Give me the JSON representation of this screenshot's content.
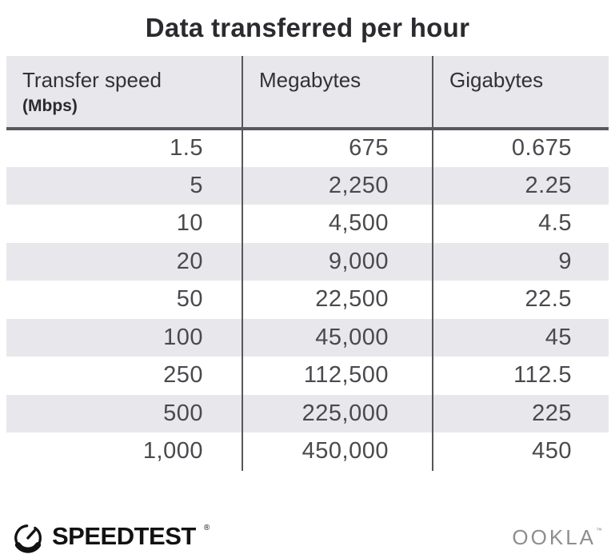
{
  "title": "Data transferred per hour",
  "table": {
    "columns": [
      {
        "label": "Transfer speed",
        "sublabel": "(Mbps)"
      },
      {
        "label": "Megabytes",
        "sublabel": ""
      },
      {
        "label": "Gigabytes",
        "sublabel": ""
      }
    ],
    "rows": [
      [
        "1.5",
        "675",
        "0.675"
      ],
      [
        "5",
        "2,250",
        "2.25"
      ],
      [
        "10",
        "4,500",
        "4.5"
      ],
      [
        "20",
        "9,000",
        "9"
      ],
      [
        "50",
        "22,500",
        "22.5"
      ],
      [
        "100",
        "45,000",
        "45"
      ],
      [
        "250",
        "112,500",
        "112.5"
      ],
      [
        "500",
        "225,000",
        "225"
      ],
      [
        "1,000",
        "450,000",
        "450"
      ]
    ]
  },
  "footer": {
    "speedtest_label": "SPEEDTEST",
    "speedtest_reg_mark": "®",
    "ookla_label": "OOKLA",
    "ookla_tm_mark": "™"
  },
  "colors": {
    "header_bg": "#e8e7eb",
    "stripe_bg": "#e8e7eb",
    "divider": "#58565c",
    "header_border": "#5a575e",
    "title_text": "#2b2a2e",
    "number_text": "#4a494d",
    "speedtest_black": "#121212",
    "ookla_gray": "#8e8d90"
  },
  "chart_data": {
    "type": "table",
    "title": "Data transferred per hour",
    "columns": [
      "Transfer speed (Mbps)",
      "Megabytes",
      "Gigabytes"
    ],
    "rows": [
      [
        1.5,
        675,
        0.675
      ],
      [
        5,
        2250,
        2.25
      ],
      [
        10,
        4500,
        4.5
      ],
      [
        20,
        9000,
        9
      ],
      [
        50,
        22500,
        22.5
      ],
      [
        100,
        45000,
        45
      ],
      [
        250,
        112500,
        112.5
      ],
      [
        500,
        225000,
        225
      ],
      [
        1000,
        450000,
        450
      ]
    ]
  }
}
